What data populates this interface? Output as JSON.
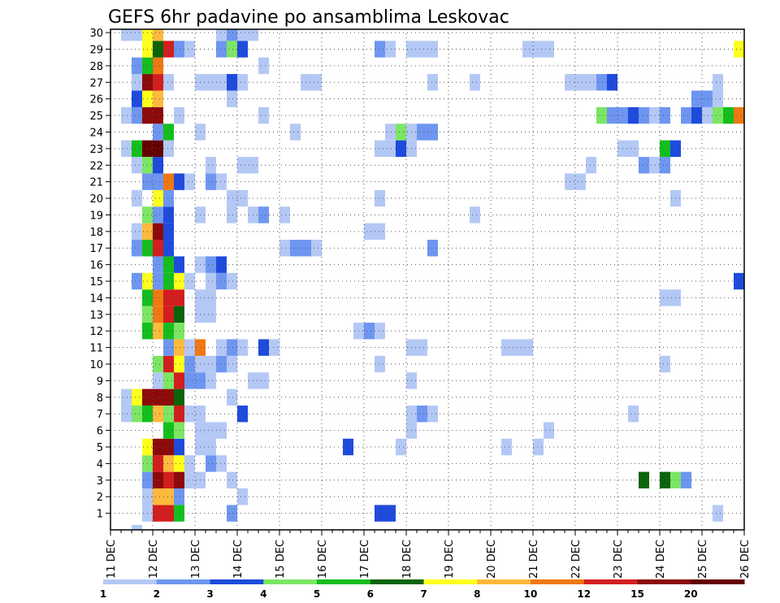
{
  "chart_data": {
    "type": "heatmap",
    "title": "GEFS 6hr padavine po ansamblima Leskovac",
    "x_ticks": [
      "11 DEC",
      "12 DEC",
      "13 DEC",
      "14 DEC",
      "15 DEC",
      "16 DEC",
      "17 DEC",
      "18 DEC",
      "19 DEC",
      "20 DEC",
      "21 DEC",
      "22 DEC",
      "23 DEC",
      "24 DEC",
      "25 DEC",
      "26 DEC"
    ],
    "y_ticks": [
      "1",
      "2",
      "3",
      "4",
      "5",
      "6",
      "7",
      "8",
      "9",
      "10",
      "11",
      "12",
      "13",
      "14",
      "15",
      "16",
      "17",
      "18",
      "19",
      "20",
      "21",
      "22",
      "23",
      "24",
      "25",
      "26",
      "27",
      "28",
      "29",
      "30"
    ],
    "x_start_day": 11,
    "steps_per_day": 4,
    "n_steps": 60,
    "ylim": [
      0,
      30
    ],
    "grid": true,
    "legend": {
      "labels": [
        "1",
        "2",
        "3",
        "4",
        "5",
        "6",
        "7",
        "8",
        "10",
        "12",
        "15",
        "20"
      ],
      "colors": [
        "#b4c8f5",
        "#6e96f0",
        "#1e4bdc",
        "#7ce664",
        "#14be1e",
        "#0a640a",
        "#ffff1e",
        "#ffb93c",
        "#f07814",
        "#d21e1e",
        "#8c0a0a",
        "#640000"
      ]
    },
    "levels": [
      "#b4c8f5",
      "#6e96f0",
      "#1e4bdc",
      "#7ce664",
      "#14be1e",
      "#0a640a",
      "#ffff1e",
      "#ffb93c",
      "#f07814",
      "#d21e1e",
      "#8c0a0a",
      "#640000"
    ],
    "cells": [
      [
        2,
        0,
        1
      ],
      [
        3,
        1,
        1
      ],
      [
        4,
        1,
        10
      ],
      [
        5,
        1,
        10
      ],
      [
        6,
        1,
        5
      ],
      [
        11,
        1,
        2
      ],
      [
        25,
        1,
        3
      ],
      [
        26,
        1,
        3
      ],
      [
        57,
        1,
        1
      ],
      [
        3,
        2,
        1
      ],
      [
        4,
        2,
        8
      ],
      [
        5,
        2,
        8
      ],
      [
        6,
        2,
        2
      ],
      [
        12,
        2,
        1
      ],
      [
        3,
        3,
        2
      ],
      [
        4,
        3,
        11
      ],
      [
        5,
        3,
        10
      ],
      [
        6,
        3,
        11
      ],
      [
        7,
        3,
        1
      ],
      [
        8,
        3,
        1
      ],
      [
        11,
        3,
        1
      ],
      [
        50,
        3,
        6
      ],
      [
        52,
        3,
        6
      ],
      [
        53,
        3,
        4
      ],
      [
        54,
        3,
        2
      ],
      [
        3,
        4,
        4
      ],
      [
        4,
        4,
        10
      ],
      [
        5,
        4,
        8
      ],
      [
        6,
        4,
        7
      ],
      [
        7,
        4,
        1
      ],
      [
        9,
        4,
        2
      ],
      [
        10,
        4,
        1
      ],
      [
        3,
        5,
        7
      ],
      [
        4,
        5,
        11
      ],
      [
        5,
        5,
        11
      ],
      [
        6,
        5,
        3
      ],
      [
        8,
        5,
        1
      ],
      [
        9,
        5,
        1
      ],
      [
        22,
        5,
        3
      ],
      [
        27,
        5,
        1
      ],
      [
        37,
        5,
        1
      ],
      [
        40,
        5,
        1
      ],
      [
        5,
        6,
        5
      ],
      [
        6,
        6,
        4
      ],
      [
        8,
        6,
        1
      ],
      [
        9,
        6,
        1
      ],
      [
        10,
        6,
        1
      ],
      [
        28,
        6,
        1
      ],
      [
        41,
        6,
        1
      ],
      [
        1,
        7,
        1
      ],
      [
        2,
        7,
        4
      ],
      [
        3,
        7,
        5
      ],
      [
        4,
        7,
        8
      ],
      [
        5,
        7,
        4
      ],
      [
        6,
        7,
        10
      ],
      [
        7,
        7,
        1
      ],
      [
        8,
        7,
        1
      ],
      [
        12,
        7,
        3
      ],
      [
        28,
        7,
        1
      ],
      [
        29,
        7,
        2
      ],
      [
        30,
        7,
        1
      ],
      [
        49,
        7,
        1
      ],
      [
        1,
        8,
        1
      ],
      [
        2,
        8,
        7
      ],
      [
        3,
        8,
        11
      ],
      [
        4,
        8,
        11
      ],
      [
        5,
        8,
        11
      ],
      [
        6,
        8,
        6
      ],
      [
        11,
        8,
        1
      ],
      [
        4,
        9,
        1
      ],
      [
        5,
        9,
        4
      ],
      [
        6,
        9,
        10
      ],
      [
        7,
        9,
        2
      ],
      [
        8,
        9,
        2
      ],
      [
        9,
        9,
        1
      ],
      [
        13,
        9,
        1
      ],
      [
        14,
        9,
        1
      ],
      [
        28,
        9,
        1
      ],
      [
        4,
        10,
        4
      ],
      [
        5,
        10,
        10
      ],
      [
        6,
        10,
        7
      ],
      [
        7,
        10,
        2
      ],
      [
        8,
        10,
        1
      ],
      [
        9,
        10,
        1
      ],
      [
        10,
        10,
        2
      ],
      [
        11,
        10,
        1
      ],
      [
        25,
        10,
        1
      ],
      [
        52,
        10,
        1
      ],
      [
        5,
        11,
        2
      ],
      [
        6,
        11,
        8
      ],
      [
        7,
        11,
        1
      ],
      [
        8,
        11,
        9
      ],
      [
        10,
        11,
        1
      ],
      [
        11,
        11,
        2
      ],
      [
        12,
        11,
        1
      ],
      [
        14,
        11,
        3
      ],
      [
        15,
        11,
        1
      ],
      [
        28,
        11,
        1
      ],
      [
        29,
        11,
        1
      ],
      [
        37,
        11,
        1
      ],
      [
        38,
        11,
        1
      ],
      [
        39,
        11,
        1
      ],
      [
        3,
        12,
        5
      ],
      [
        4,
        12,
        8
      ],
      [
        5,
        12,
        5
      ],
      [
        6,
        12,
        4
      ],
      [
        23,
        12,
        1
      ],
      [
        24,
        12,
        2
      ],
      [
        25,
        12,
        1
      ],
      [
        3,
        13,
        4
      ],
      [
        4,
        13,
        9
      ],
      [
        5,
        13,
        10
      ],
      [
        6,
        13,
        6
      ],
      [
        8,
        13,
        1
      ],
      [
        9,
        13,
        1
      ],
      [
        3,
        14,
        5
      ],
      [
        4,
        14,
        9
      ],
      [
        5,
        14,
        10
      ],
      [
        6,
        14,
        10
      ],
      [
        8,
        14,
        1
      ],
      [
        9,
        14,
        1
      ],
      [
        52,
        14,
        1
      ],
      [
        53,
        14,
        1
      ],
      [
        2,
        15,
        2
      ],
      [
        3,
        15,
        7
      ],
      [
        4,
        15,
        2
      ],
      [
        5,
        15,
        5
      ],
      [
        6,
        15,
        7
      ],
      [
        7,
        15,
        1
      ],
      [
        9,
        15,
        1
      ],
      [
        10,
        15,
        2
      ],
      [
        11,
        15,
        1
      ],
      [
        59,
        15,
        3
      ],
      [
        4,
        16,
        2
      ],
      [
        5,
        16,
        5
      ],
      [
        6,
        16,
        3
      ],
      [
        8,
        16,
        1
      ],
      [
        9,
        16,
        2
      ],
      [
        10,
        16,
        3
      ],
      [
        2,
        17,
        2
      ],
      [
        3,
        17,
        5
      ],
      [
        4,
        17,
        10
      ],
      [
        5,
        17,
        3
      ],
      [
        16,
        17,
        1
      ],
      [
        17,
        17,
        2
      ],
      [
        18,
        17,
        2
      ],
      [
        19,
        17,
        1
      ],
      [
        30,
        17,
        2
      ],
      [
        2,
        18,
        1
      ],
      [
        3,
        18,
        8
      ],
      [
        4,
        18,
        11
      ],
      [
        5,
        18,
        3
      ],
      [
        24,
        18,
        1
      ],
      [
        25,
        18,
        1
      ],
      [
        3,
        19,
        4
      ],
      [
        4,
        19,
        2
      ],
      [
        5,
        19,
        3
      ],
      [
        8,
        19,
        1
      ],
      [
        11,
        19,
        1
      ],
      [
        13,
        19,
        1
      ],
      [
        14,
        19,
        2
      ],
      [
        16,
        19,
        1
      ],
      [
        34,
        19,
        1
      ],
      [
        2,
        20,
        1
      ],
      [
        4,
        20,
        7
      ],
      [
        5,
        20,
        2
      ],
      [
        11,
        20,
        1
      ],
      [
        12,
        20,
        1
      ],
      [
        25,
        20,
        1
      ],
      [
        53,
        20,
        1
      ],
      [
        3,
        21,
        2
      ],
      [
        4,
        21,
        2
      ],
      [
        5,
        21,
        9
      ],
      [
        6,
        21,
        3
      ],
      [
        7,
        21,
        1
      ],
      [
        9,
        21,
        2
      ],
      [
        10,
        21,
        1
      ],
      [
        43,
        21,
        1
      ],
      [
        44,
        21,
        1
      ],
      [
        2,
        22,
        1
      ],
      [
        3,
        22,
        4
      ],
      [
        4,
        22,
        3
      ],
      [
        9,
        22,
        1
      ],
      [
        12,
        22,
        1
      ],
      [
        13,
        22,
        1
      ],
      [
        45,
        22,
        1
      ],
      [
        50,
        22,
        2
      ],
      [
        51,
        22,
        1
      ],
      [
        52,
        22,
        2
      ],
      [
        1,
        23,
        1
      ],
      [
        2,
        23,
        5
      ],
      [
        3,
        23,
        12
      ],
      [
        4,
        23,
        12
      ],
      [
        5,
        23,
        1
      ],
      [
        25,
        23,
        1
      ],
      [
        26,
        23,
        1
      ],
      [
        27,
        23,
        3
      ],
      [
        28,
        23,
        1
      ],
      [
        48,
        23,
        1
      ],
      [
        49,
        23,
        1
      ],
      [
        52,
        23,
        5
      ],
      [
        53,
        23,
        3
      ],
      [
        4,
        24,
        2
      ],
      [
        5,
        24,
        5
      ],
      [
        8,
        24,
        1
      ],
      [
        17,
        24,
        1
      ],
      [
        26,
        24,
        1
      ],
      [
        27,
        24,
        4
      ],
      [
        28,
        24,
        1
      ],
      [
        29,
        24,
        2
      ],
      [
        30,
        24,
        2
      ],
      [
        1,
        25,
        1
      ],
      [
        2,
        25,
        2
      ],
      [
        3,
        25,
        11
      ],
      [
        4,
        25,
        11
      ],
      [
        6,
        25,
        1
      ],
      [
        14,
        25,
        1
      ],
      [
        46,
        25,
        4
      ],
      [
        47,
        25,
        2
      ],
      [
        48,
        25,
        2
      ],
      [
        49,
        25,
        3
      ],
      [
        50,
        25,
        2
      ],
      [
        51,
        25,
        1
      ],
      [
        52,
        25,
        2
      ],
      [
        54,
        25,
        2
      ],
      [
        55,
        25,
        3
      ],
      [
        56,
        25,
        1
      ],
      [
        57,
        25,
        4
      ],
      [
        58,
        25,
        5
      ],
      [
        59,
        25,
        9
      ],
      [
        2,
        26,
        3
      ],
      [
        3,
        26,
        7
      ],
      [
        4,
        26,
        8
      ],
      [
        11,
        26,
        1
      ],
      [
        55,
        26,
        2
      ],
      [
        56,
        26,
        2
      ],
      [
        57,
        26,
        1
      ],
      [
        2,
        27,
        1
      ],
      [
        3,
        27,
        11
      ],
      [
        4,
        27,
        10
      ],
      [
        5,
        27,
        1
      ],
      [
        8,
        27,
        1
      ],
      [
        9,
        27,
        1
      ],
      [
        10,
        27,
        1
      ],
      [
        11,
        27,
        3
      ],
      [
        12,
        27,
        1
      ],
      [
        18,
        27,
        1
      ],
      [
        19,
        27,
        1
      ],
      [
        30,
        27,
        1
      ],
      [
        34,
        27,
        1
      ],
      [
        43,
        27,
        1
      ],
      [
        44,
        27,
        1
      ],
      [
        45,
        27,
        1
      ],
      [
        46,
        27,
        2
      ],
      [
        47,
        27,
        3
      ],
      [
        57,
        27,
        1
      ],
      [
        2,
        28,
        2
      ],
      [
        3,
        28,
        5
      ],
      [
        4,
        28,
        9
      ],
      [
        14,
        28,
        1
      ],
      [
        3,
        29,
        7
      ],
      [
        4,
        29,
        6
      ],
      [
        5,
        29,
        10
      ],
      [
        6,
        29,
        2
      ],
      [
        7,
        29,
        1
      ],
      [
        10,
        29,
        2
      ],
      [
        11,
        29,
        4
      ],
      [
        12,
        29,
        3
      ],
      [
        25,
        29,
        2
      ],
      [
        26,
        29,
        1
      ],
      [
        28,
        29,
        1
      ],
      [
        29,
        29,
        1
      ],
      [
        30,
        29,
        1
      ],
      [
        39,
        29,
        1
      ],
      [
        40,
        29,
        1
      ],
      [
        41,
        29,
        1
      ],
      [
        59,
        29,
        7
      ],
      [
        1,
        30,
        1
      ],
      [
        2,
        30,
        1
      ],
      [
        3,
        30,
        7
      ],
      [
        4,
        30,
        8
      ],
      [
        10,
        30,
        1
      ],
      [
        11,
        30,
        2
      ],
      [
        12,
        30,
        1
      ],
      [
        13,
        30,
        1
      ]
    ]
  }
}
